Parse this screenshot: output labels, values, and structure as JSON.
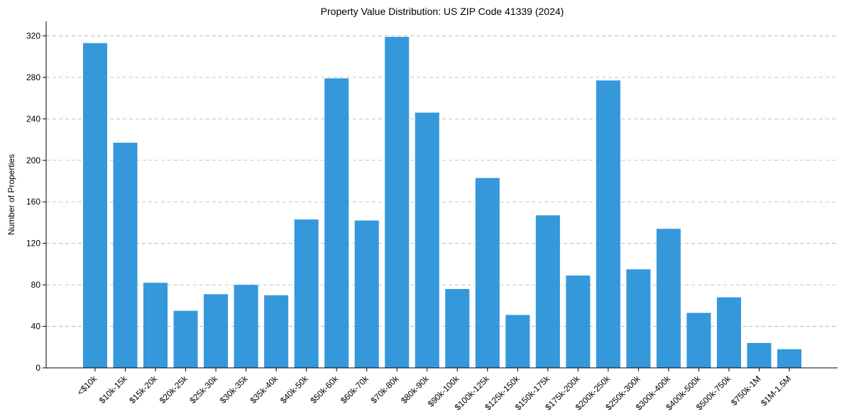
{
  "chart_data": {
    "type": "bar",
    "title": "Property Value Distribution: US ZIP Code 41339 (2024)",
    "xlabel": "",
    "ylabel": "Number of Properties",
    "ylim": [
      0,
      334
    ],
    "yticks": [
      0,
      40,
      80,
      120,
      160,
      200,
      240,
      280,
      320
    ],
    "grid": "y-dashed",
    "bar_color": "#3498db",
    "categories": [
      "<$10k",
      "$10k-15k",
      "$15k-20k",
      "$20k-25k",
      "$25k-30k",
      "$30k-35k",
      "$35k-40k",
      "$40k-50k",
      "$50k-60k",
      "$60k-70k",
      "$70k-80k",
      "$80k-90k",
      "$90k-100k",
      "$100k-125k",
      "$125k-150k",
      "$150k-175k",
      "$175k-200k",
      "$200k-250k",
      "$250k-300k",
      "$300k-400k",
      "$400k-500k",
      "$500k-750k",
      "$750k-1M",
      "$1M-1.5M"
    ],
    "values": [
      313,
      217,
      82,
      55,
      71,
      80,
      70,
      143,
      279,
      142,
      319,
      246,
      76,
      183,
      51,
      147,
      89,
      277,
      95,
      134,
      53,
      68,
      24,
      18
    ]
  }
}
